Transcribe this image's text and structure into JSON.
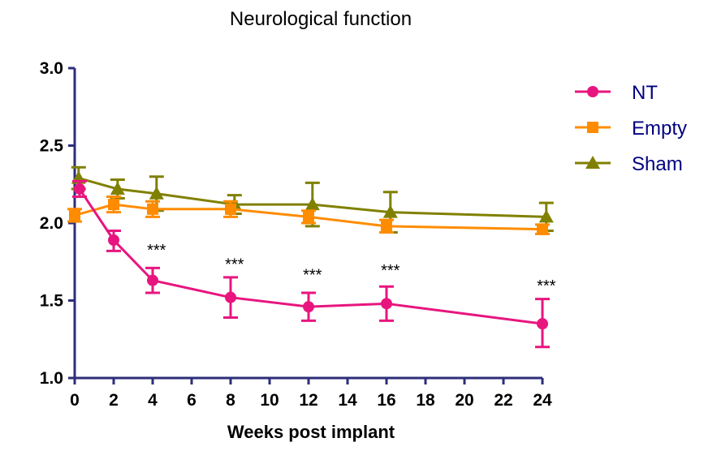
{
  "chart_data": {
    "type": "line",
    "title": "Neurological function",
    "xlabel": "Weeks post implant",
    "ylabel": "",
    "xlim": [
      0,
      24
    ],
    "ylim": [
      1.0,
      3.0
    ],
    "x_ticks": [
      0,
      2,
      4,
      6,
      8,
      10,
      12,
      14,
      16,
      18,
      20,
      22,
      24
    ],
    "y_ticks": [
      1.0,
      1.5,
      2.0,
      2.5,
      3.0
    ],
    "y_tick_labels": [
      "1.0",
      "1.5",
      "2.0",
      "2.5",
      "3.0"
    ],
    "grid": false,
    "legend_position": "top-right",
    "series": [
      {
        "name": "NT",
        "color": "#e8157f",
        "marker": "circle",
        "x": [
          0.25,
          2,
          4,
          8,
          12,
          16,
          24
        ],
        "y": [
          2.22,
          1.89,
          1.63,
          1.52,
          1.46,
          1.48,
          1.35
        ],
        "err_up": [
          0.05,
          0.06,
          0.08,
          0.13,
          0.09,
          0.11,
          0.16
        ],
        "err_down": [
          0.05,
          0.07,
          0.08,
          0.13,
          0.09,
          0.11,
          0.15
        ]
      },
      {
        "name": "Empty",
        "color": "#ff8c00",
        "marker": "square",
        "x": [
          0,
          2,
          4,
          8,
          12,
          16,
          24
        ],
        "y": [
          2.05,
          2.12,
          2.09,
          2.09,
          2.04,
          1.98,
          1.96
        ],
        "err_up": [
          0.04,
          0.05,
          0.05,
          0.05,
          0.04,
          0.04,
          0.03
        ],
        "err_down": [
          0.04,
          0.05,
          0.05,
          0.05,
          0.04,
          0.04,
          0.03
        ]
      },
      {
        "name": "Sham",
        "color": "#808000",
        "marker": "triangle",
        "x": [
          0.2,
          2.2,
          4.2,
          8.2,
          12.2,
          16.2,
          24.2
        ],
        "y": [
          2.29,
          2.22,
          2.19,
          2.12,
          2.12,
          2.07,
          2.04
        ],
        "err_up": [
          0.07,
          0.06,
          0.11,
          0.06,
          0.14,
          0.13,
          0.09
        ],
        "err_down": [
          0.07,
          0.06,
          0.11,
          0.06,
          0.14,
          0.13,
          0.09
        ]
      }
    ],
    "annotations": [
      {
        "x": 4.2,
        "y": 1.79,
        "text": "***"
      },
      {
        "x": 8.2,
        "y": 1.7,
        "text": "***"
      },
      {
        "x": 12.2,
        "y": 1.63,
        "text": "***"
      },
      {
        "x": 16.2,
        "y": 1.66,
        "text": "***"
      },
      {
        "x": 24.2,
        "y": 1.56,
        "text": "***"
      }
    ]
  }
}
